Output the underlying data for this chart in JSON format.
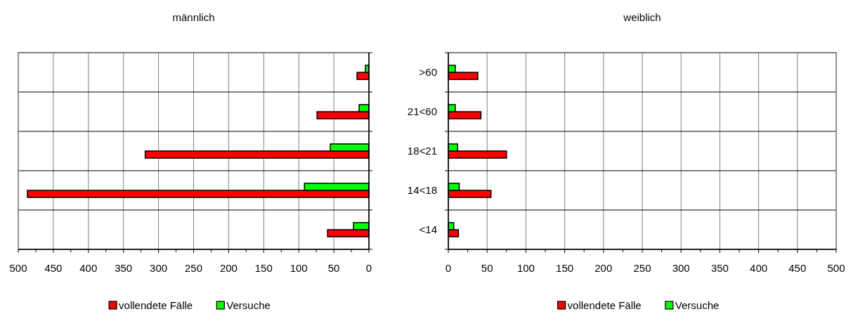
{
  "chart_data": [
    {
      "type": "bar",
      "title": "männlich",
      "orientation": "horizontal",
      "categories": [
        null,
        null,
        null,
        null,
        null
      ],
      "series": [
        {
          "name": "vollendete Fälle",
          "color": "#ff0000",
          "values": [
            17,
            74,
            319,
            487,
            59
          ]
        },
        {
          "name": "Versuche",
          "color": "#00ff00",
          "values": [
            5,
            14,
            55,
            92,
            22
          ]
        }
      ],
      "xlim": [
        500,
        0
      ],
      "xticks": [
        500,
        450,
        400,
        350,
        300,
        250,
        200,
        150,
        100,
        50,
        0
      ],
      "grid": true,
      "legend": "bottom"
    },
    {
      "type": "bar",
      "title": "weiblich",
      "orientation": "horizontal",
      "categories": [
        ">60",
        "21<60",
        "18<21",
        "14<18",
        "<14"
      ],
      "series": [
        {
          "name": "vollendete Fälle",
          "color": "#ff0000",
          "values": [
            38,
            42,
            75,
            55,
            13
          ]
        },
        {
          "name": "Versuche",
          "color": "#00ff00",
          "values": [
            9,
            9,
            12,
            14,
            7
          ]
        }
      ],
      "xlim": [
        0,
        500
      ],
      "xticks": [
        0,
        50,
        100,
        150,
        200,
        250,
        300,
        350,
        400,
        450,
        500
      ],
      "grid": true,
      "legend": "bottom"
    }
  ]
}
